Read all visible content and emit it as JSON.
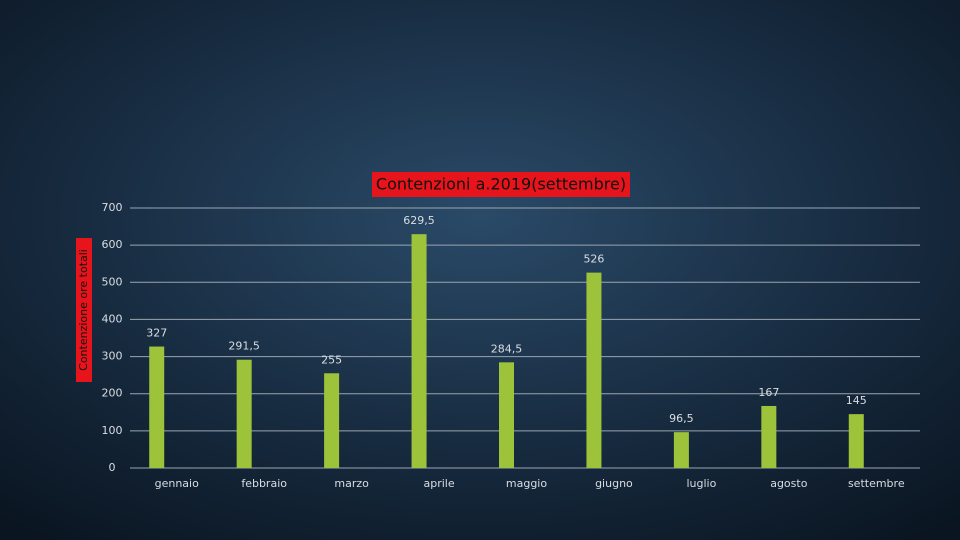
{
  "chart_data": {
    "type": "bar",
    "title": "Contenzioni a.2019(settembre)",
    "y_label": "Contenzione ore totali",
    "categories": [
      "gennaio",
      "febbraio",
      "marzo",
      "aprile",
      "maggio",
      "giugno",
      "luglio",
      "agosto",
      "settembre"
    ],
    "values": [
      327,
      291.5,
      255,
      629.5,
      284.5,
      526,
      96.5,
      167,
      145
    ],
    "value_labels": [
      "327",
      "291,5",
      "255",
      "629,5",
      "284,5",
      "526",
      "96,5",
      "167",
      "145"
    ],
    "color": "#9dc33b",
    "ylim": [
      0,
      700
    ],
    "yticks": [
      0,
      100,
      200,
      300,
      400,
      500,
      600,
      700
    ],
    "grid": true
  }
}
